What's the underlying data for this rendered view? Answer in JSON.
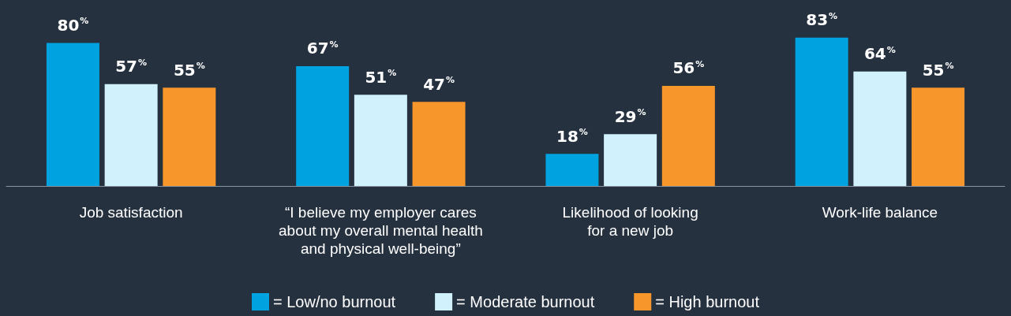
{
  "chart_data": {
    "type": "bar",
    "categories": [
      "Job satisfaction",
      "“I believe my employer cares\nabout my overall mental health\nand physical well-being”",
      "Likelihood of looking\nfor a new job",
      "Work-life balance"
    ],
    "series": [
      {
        "name": "= Low/no burnout",
        "color": "#00a3e0",
        "values": [
          80,
          67,
          18,
          83
        ],
        "value_labels": [
          "80%",
          "67%",
          "18%",
          "83%"
        ]
      },
      {
        "name": "= Moderate burnout",
        "color": "#d1f1fc",
        "values": [
          57,
          51,
          29,
          64
        ],
        "value_labels": [
          "57%",
          "51%",
          "29%",
          "64%"
        ]
      },
      {
        "name": "= High burnout",
        "color": "#f7962b",
        "values": [
          55,
          47,
          56,
          55
        ],
        "value_labels": [
          "55%",
          "47%",
          "56%",
          "55%"
        ]
      }
    ],
    "legend": "bottom",
    "grid": false
  }
}
